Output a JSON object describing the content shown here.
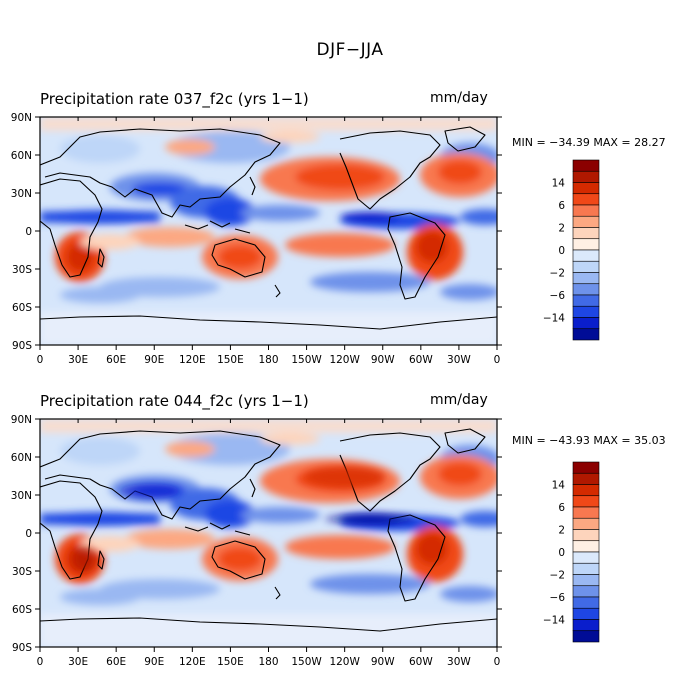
{
  "title": "DJF−JJA",
  "panels": [
    {
      "title": "Precipitation rate   037_f2c (yrs 1−1)",
      "units": "mm/day",
      "stats": "MIN = −34.39  MAX =  28.27"
    },
    {
      "title": "Precipitation rate   044_f2c (yrs 1−1)",
      "units": "mm/day",
      "stats": "MIN = −43.93  MAX =  35.03"
    }
  ],
  "chart_data": [
    {
      "type": "heatmap",
      "title": "Precipitation rate   037_f2c (yrs 1−1)",
      "variable": "Precipitation rate",
      "case": "037_f2c (yrs 1−1)",
      "units": "mm/day",
      "min": -34.39,
      "max": 28.27,
      "x_ticks": [
        "0",
        "30E",
        "60E",
        "90E",
        "120E",
        "150E",
        "180",
        "150W",
        "120W",
        "90W",
        "60W",
        "30W",
        "0"
      ],
      "y_ticks": [
        "90N",
        "60N",
        "30N",
        "0",
        "30S",
        "60S",
        "90S"
      ],
      "xlim": [
        0,
        360
      ],
      "ylim": [
        -90,
        90
      ],
      "colorbar_labels": [
        "14",
        "6",
        "2",
        "0",
        "−2",
        "−6",
        "−14"
      ]
    },
    {
      "type": "heatmap",
      "title": "Precipitation rate   044_f2c (yrs 1−1)",
      "variable": "Precipitation rate",
      "case": "044_f2c (yrs 1−1)",
      "units": "mm/day",
      "min": -43.93,
      "max": 35.03,
      "x_ticks": [
        "0",
        "30E",
        "60E",
        "90E",
        "120E",
        "150E",
        "180",
        "150W",
        "120W",
        "90W",
        "60W",
        "30W",
        "0"
      ],
      "y_ticks": [
        "90N",
        "60N",
        "30N",
        "0",
        "30S",
        "60S",
        "90S"
      ],
      "xlim": [
        0,
        360
      ],
      "ylim": [
        -90,
        90
      ],
      "colorbar_labels": [
        "14",
        "6",
        "2",
        "0",
        "−2",
        "−6",
        "−14"
      ]
    }
  ],
  "colors": {
    "scale": [
      "#8b0000",
      "#b01800",
      "#d42a00",
      "#f04818",
      "#f87850",
      "#fca882",
      "#fdd4bc",
      "#fff0e4",
      "#dbe9fb",
      "#bed6f8",
      "#9ab8f2",
      "#6e92ea",
      "#416ae6",
      "#1e46e4",
      "#0a1ecc",
      "#000c96"
    ],
    "land_outline": "#000000",
    "background_fill": "#d6e6fb"
  }
}
